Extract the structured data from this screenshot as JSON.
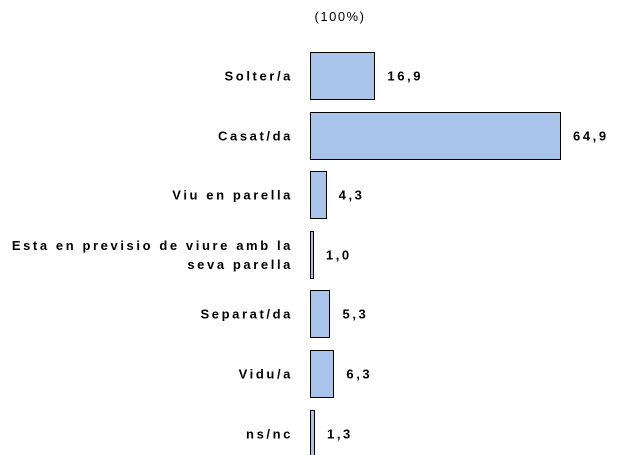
{
  "chart_data": {
    "type": "bar",
    "orientation": "horizontal",
    "title": "(100%)",
    "categories": [
      "Solter/a",
      "Casat/da",
      "Viu en parella",
      "Esta en previsio de viure amb la seva parella",
      "Separat/da",
      "Vidu/a",
      "ns/nc"
    ],
    "values": [
      16.9,
      64.9,
      4.3,
      1.0,
      5.3,
      6.3,
      1.3
    ],
    "value_labels": [
      "16,9",
      "64,9",
      "4,3",
      "1,0",
      "5,3",
      "6,3",
      "1,3"
    ],
    "color": "#a9c4eb"
  }
}
